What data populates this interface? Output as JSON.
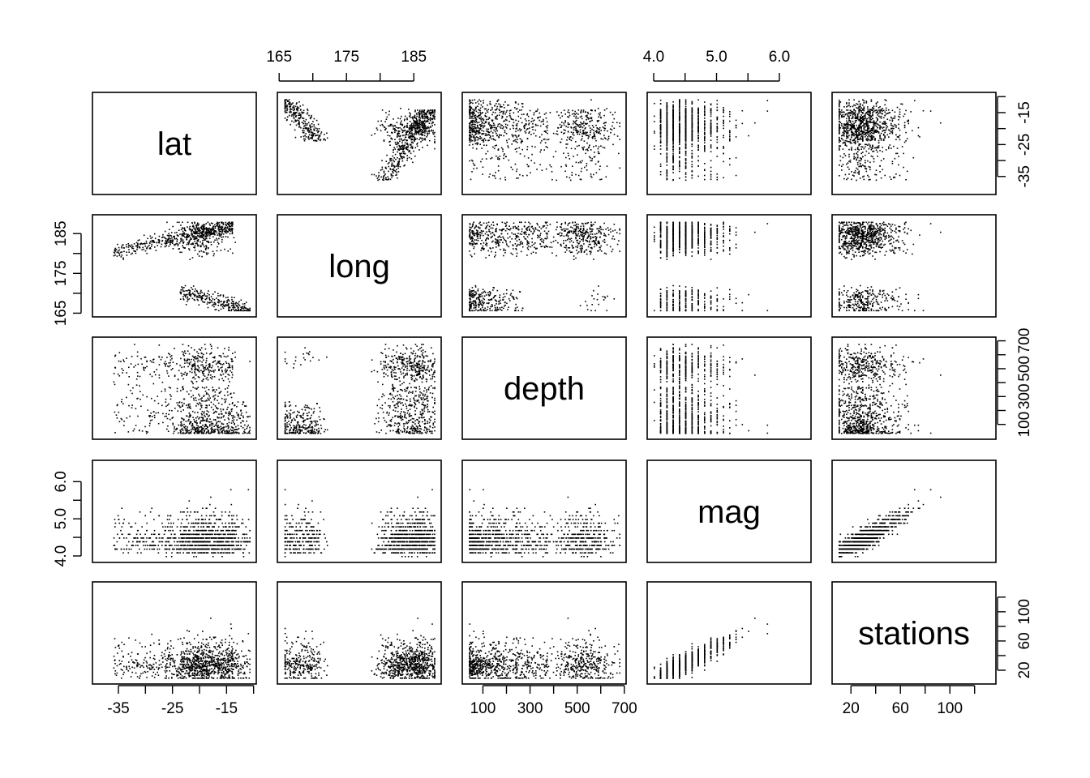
{
  "chart_data": {
    "type": "scatter-matrix",
    "title": "",
    "variables": [
      {
        "name": "lat",
        "label": "lat",
        "range": [
          -38.6,
          -10.7
        ],
        "ticks": [
          -35,
          -30,
          -25,
          -20,
          -15,
          -10
        ],
        "tick_labels": [
          "-35",
          "",
          "-25",
          "",
          "-15",
          ""
        ],
        "axis_side": "bottom-right"
      },
      {
        "name": "long",
        "label": "long",
        "range": [
          165.7,
          188.1
        ],
        "ticks": [
          165,
          170,
          175,
          180,
          185
        ],
        "tick_labels": [
          "165",
          "",
          "175",
          "",
          "185"
        ],
        "axis_side": "top-left"
      },
      {
        "name": "depth",
        "label": "depth",
        "range": [
          40,
          680
        ],
        "ticks": [
          100,
          200,
          300,
          400,
          500,
          600,
          700
        ],
        "tick_labels": [
          "100",
          "",
          "300",
          "",
          "500",
          "",
          "700"
        ],
        "axis_side": "bottom-right"
      },
      {
        "name": "mag",
        "label": "mag",
        "range": [
          4.0,
          6.4
        ],
        "ticks": [
          4.0,
          4.5,
          5.0,
          5.5,
          6.0
        ],
        "tick_labels": [
          "4.0",
          "",
          "5.0",
          "",
          "6.0"
        ],
        "axis_side": "top-left"
      },
      {
        "name": "stations",
        "label": "stations",
        "range": [
          10,
          132
        ],
        "ticks": [
          20,
          40,
          60,
          80,
          100,
          120
        ],
        "tick_labels": [
          "20",
          "",
          "60",
          "",
          "100",
          ""
        ],
        "axis_side": "bottom-right"
      }
    ],
    "n_points": 1000,
    "point_symbol": "dot",
    "point_color": "#000000",
    "grid": false,
    "legend": "none",
    "data_description": "Pairwise scatterplots of 1000 seismic events; mag and stations strongly positively correlated; lat and long form two arc-shaped clusters."
  }
}
